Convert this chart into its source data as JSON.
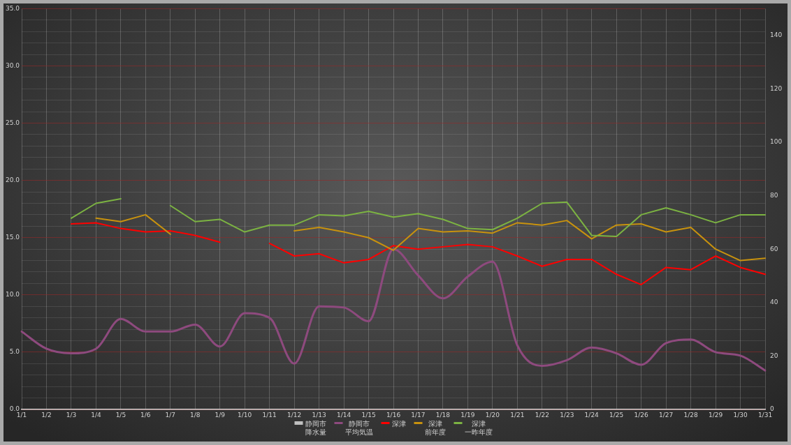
{
  "chart_data": {
    "type": "line",
    "categories": [
      "1/1",
      "1/2",
      "1/3",
      "1/4",
      "1/5",
      "1/6",
      "1/7",
      "1/8",
      "1/9",
      "1/10",
      "1/11",
      "1/12",
      "1/13",
      "1/14",
      "1/15",
      "1/16",
      "1/17",
      "1/18",
      "1/19",
      "1/20",
      "1/21",
      "1/22",
      "1/23",
      "1/24",
      "1/25",
      "1/26",
      "1/27",
      "1/28",
      "1/29",
      "1/30",
      "1/31"
    ],
    "series": [
      {
        "name": "静岡市降水量",
        "type": "bar",
        "color": "#c0c0c0",
        "values": [
          null,
          null,
          null,
          null,
          null,
          null,
          null,
          null,
          null,
          null,
          null,
          null,
          null,
          null,
          null,
          null,
          null,
          null,
          null,
          null,
          null,
          null,
          null,
          null,
          null,
          null,
          null,
          null,
          null,
          null,
          null
        ]
      },
      {
        "name": "静岡市平均気温",
        "color": "#8e4a7e",
        "values": [
          6.8,
          5.3,
          4.9,
          5.3,
          7.9,
          6.8,
          6.8,
          7.4,
          5.5,
          8.4,
          8.0,
          4.0,
          9.0,
          8.9,
          7.7,
          14.0,
          11.7,
          9.7,
          11.6,
          12.9,
          5.6,
          3.8,
          4.3,
          5.4,
          4.9,
          3.9,
          5.8,
          6.1,
          5.0,
          4.7,
          3.4
        ]
      },
      {
        "name": "深津",
        "color": "#ff0000",
        "values": [
          null,
          null,
          16.2,
          16.3,
          15.8,
          15.5,
          15.6,
          15.2,
          14.6,
          null,
          14.5,
          13.4,
          13.6,
          12.8,
          13.1,
          14.3,
          14.0,
          14.2,
          14.4,
          14.2,
          13.4,
          12.5,
          13.1,
          13.1,
          11.8,
          10.9,
          12.4,
          12.2,
          13.4,
          12.4,
          11.8
        ]
      },
      {
        "name": "深津前年度",
        "color": "#c8920e",
        "values": [
          null,
          null,
          null,
          16.7,
          16.4,
          17.0,
          15.3,
          null,
          null,
          null,
          null,
          15.6,
          15.9,
          15.5,
          15.0,
          13.9,
          15.8,
          15.5,
          15.6,
          15.4,
          16.3,
          16.1,
          16.5,
          14.9,
          16.1,
          16.2,
          15.5,
          15.9,
          14.0,
          13.0,
          13.2
        ]
      },
      {
        "name": "深津一昨年度",
        "color": "#7cb342",
        "values": [
          null,
          null,
          16.7,
          18.0,
          18.4,
          null,
          17.8,
          16.4,
          16.6,
          15.5,
          16.1,
          16.1,
          17.0,
          16.9,
          17.3,
          16.8,
          17.1,
          16.6,
          15.8,
          15.7,
          16.7,
          18.0,
          18.1,
          15.2,
          15.1,
          17.0,
          17.6,
          17.0,
          16.3,
          17.0,
          17.0
        ]
      }
    ],
    "ylim": [
      0,
      35
    ],
    "yticks": [
      {
        "value": 0,
        "label": "0.0"
      },
      {
        "value": 1,
        "label": null
      },
      {
        "value": 2,
        "label": null
      },
      {
        "value": 3,
        "label": null
      },
      {
        "value": 4,
        "label": null
      },
      {
        "value": 5,
        "label": "5.0"
      },
      {
        "value": 6,
        "label": null
      },
      {
        "value": 7,
        "label": null
      },
      {
        "value": 8,
        "label": null
      },
      {
        "value": 9,
        "label": null
      },
      {
        "value": 10,
        "label": "10.0"
      },
      {
        "value": 11,
        "label": null
      },
      {
        "value": 12,
        "label": null
      },
      {
        "value": 13,
        "label": null
      },
      {
        "value": 14,
        "label": null
      },
      {
        "value": 15,
        "label": "15.0"
      },
      {
        "value": 16,
        "label": null
      },
      {
        "value": 17,
        "label": null
      },
      {
        "value": 18,
        "label": null
      },
      {
        "value": 19,
        "label": null
      },
      {
        "value": 20,
        "label": "20.0"
      },
      {
        "value": 21,
        "label": null
      },
      {
        "value": 22,
        "label": null
      },
      {
        "value": 23,
        "label": null
      },
      {
        "value": 24,
        "label": null
      },
      {
        "value": 25,
        "label": "25.0"
      },
      {
        "value": 26,
        "label": null
      },
      {
        "value": 27,
        "label": null
      },
      {
        "value": 28,
        "label": null
      },
      {
        "value": 29,
        "label": null
      },
      {
        "value": 30,
        "label": "30.0"
      },
      {
        "value": 31,
        "label": null
      },
      {
        "value": 32,
        "label": null
      },
      {
        "value": 33,
        "label": null
      },
      {
        "value": 34,
        "label": null
      },
      {
        "value": 35,
        "label": "35.0"
      }
    ],
    "y2lim": [
      0,
      150
    ],
    "y2ticks": [
      0,
      20,
      40,
      60,
      80,
      100,
      120,
      140
    ],
    "grid": true,
    "legend": "bottom",
    "marker": "none",
    "line_style": "solid"
  }
}
